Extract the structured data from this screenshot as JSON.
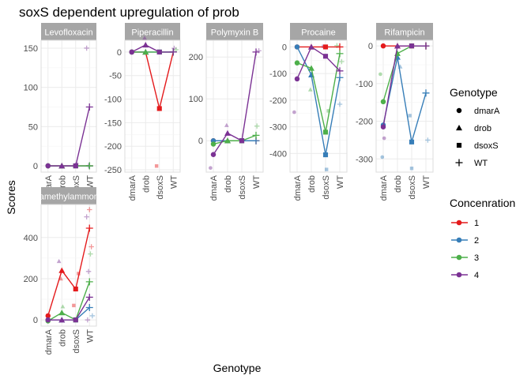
{
  "chart_data": {
    "type": "line",
    "title": "soxS dependent upregulation of prob",
    "xlabel": "Genotype",
    "ylabel": "Scores",
    "categories": [
      "dmarA",
      "drob",
      "dsoxS",
      "WT"
    ],
    "grid": true,
    "legends": {
      "shape": {
        "title": "Genotype",
        "items": [
          {
            "label": "dmarA",
            "shape": "circle"
          },
          {
            "label": "drob",
            "shape": "triangle"
          },
          {
            "label": "dsoxS",
            "shape": "square"
          },
          {
            "label": "WT",
            "shape": "plus"
          }
        ]
      },
      "color": {
        "title": "Concenration",
        "items": [
          {
            "label": "1",
            "color": "#e41a1c"
          },
          {
            "label": "2",
            "color": "#377eb8"
          },
          {
            "label": "3",
            "color": "#4daf4a"
          },
          {
            "label": "4",
            "color": "#7b3294"
          }
        ]
      },
      "placement": "right"
    },
    "panels": [
      {
        "strip": "Levofloxacin",
        "ylim": [
          -8,
          160
        ],
        "yticks": [
          0,
          50,
          100,
          150
        ],
        "series": [
          {
            "name": "1",
            "values": [
              0,
              0,
              0,
              0
            ]
          },
          {
            "name": "2",
            "values": [
              0,
              0,
              0,
              0
            ]
          },
          {
            "name": "3",
            "values": [
              0,
              0,
              0,
              0
            ]
          },
          {
            "name": "4",
            "values": [
              0,
              0,
              0,
              75
            ]
          }
        ],
        "raw": [
          {
            "c": 3,
            "g": 3,
            "v": 150
          },
          {
            "c": 3,
            "g": 3,
            "v": 0
          },
          {
            "c": 3,
            "g": 2,
            "v": 2
          }
        ]
      },
      {
        "strip": "Piperacillin",
        "ylim": [
          -255,
          25
        ],
        "yticks": [
          0,
          -50,
          -100,
          -150,
          -200,
          -250
        ],
        "series": [
          {
            "name": "1",
            "values": [
              0,
              0,
              -120,
              0
            ]
          },
          {
            "name": "2",
            "values": [
              0,
              0,
              0,
              0
            ]
          },
          {
            "name": "3",
            "values": [
              0,
              0,
              0,
              0
            ]
          },
          {
            "name": "4",
            "values": [
              0,
              15,
              0,
              0
            ]
          }
        ],
        "raw": [
          {
            "c": 0,
            "g": 2,
            "v": -242
          },
          {
            "c": 3,
            "g": 1,
            "v": 30
          },
          {
            "c": 3,
            "g": 3,
            "v": 8
          },
          {
            "c": 2,
            "g": 3,
            "v": 5
          }
        ]
      },
      {
        "strip": "Polymyxin B",
        "ylim": [
          -75,
          240
        ],
        "yticks": [
          0,
          100,
          200
        ],
        "series": [
          {
            "name": "1",
            "values": [
              0,
              0,
              0,
              0
            ]
          },
          {
            "name": "2",
            "values": [
              0,
              0,
              0,
              0
            ]
          },
          {
            "name": "3",
            "values": [
              -8,
              0,
              0,
              13
            ]
          },
          {
            "name": "4",
            "values": [
              -33,
              18,
              0,
              212
            ]
          }
        ],
        "raw": [
          {
            "c": 3,
            "g": 0,
            "v": -65
          },
          {
            "c": 3,
            "g": 1,
            "v": 37
          },
          {
            "c": 2,
            "g": 3,
            "v": 35
          },
          {
            "c": 3,
            "g": 3,
            "v": 215
          }
        ]
      },
      {
        "strip": "Procaine",
        "ylim": [
          -470,
          25
        ],
        "yticks": [
          0,
          -100,
          -200,
          -300,
          -400
        ],
        "series": [
          {
            "name": "1",
            "values": [
              0,
              0,
              0,
              0
            ]
          },
          {
            "name": "2",
            "values": [
              0,
              -105,
              -405,
              -115
            ]
          },
          {
            "name": "3",
            "values": [
              -60,
              -80,
              -320,
              -25
            ]
          },
          {
            "name": "4",
            "values": [
              -120,
              0,
              -35,
              -90
            ]
          }
        ],
        "raw": [
          {
            "c": 3,
            "g": 0,
            "v": -245
          },
          {
            "c": 2,
            "g": 1,
            "v": -160
          },
          {
            "c": 1,
            "g": 2,
            "v": -460
          },
          {
            "c": 2,
            "g": 2,
            "v": -240
          },
          {
            "c": 3,
            "g": 2,
            "v": 2
          },
          {
            "c": 1,
            "g": 3,
            "v": -215
          },
          {
            "c": 2,
            "g": 3,
            "v": -55
          },
          {
            "c": 2,
            "g": 3,
            "v": 5
          }
        ]
      },
      {
        "strip": "Rifampicin",
        "ylim": [
          -335,
          15
        ],
        "yticks": [
          0,
          -100,
          -200,
          -300
        ],
        "series": [
          {
            "name": "1",
            "values": [
              0,
              0,
              0,
              0
            ]
          },
          {
            "name": "2",
            "values": [
              -210,
              -30,
              -255,
              -125
            ]
          },
          {
            "name": "3",
            "values": [
              -148,
              -20,
              0,
              0
            ]
          },
          {
            "name": "4",
            "values": [
              -215,
              0,
              0,
              0
            ]
          }
        ],
        "raw": [
          {
            "c": 2,
            "g": 0,
            "v": -75
          },
          {
            "c": 1,
            "g": 0,
            "v": -295
          },
          {
            "c": 3,
            "g": 0,
            "v": -245
          },
          {
            "c": 1,
            "g": 1,
            "v": -55
          },
          {
            "c": 1,
            "g": 2,
            "v": -185
          },
          {
            "c": 1,
            "g": 2,
            "v": -325
          },
          {
            "c": 1,
            "g": 3,
            "v": -250
          }
        ]
      },
      {
        "strip": "Tetramethylammonium",
        "strip_visible": "amonomethoz",
        "ylim": [
          -30,
          560
        ],
        "yticks": [
          0,
          200,
          400
        ],
        "series": [
          {
            "name": "1",
            "values": [
              20,
              240,
              150,
              445
            ]
          },
          {
            "name": "2",
            "values": [
              0,
              0,
              0,
              60
            ]
          },
          {
            "name": "3",
            "values": [
              -5,
              35,
              0,
              185
            ]
          },
          {
            "name": "4",
            "values": [
              0,
              0,
              0,
              110
            ]
          }
        ],
        "raw": [
          {
            "c": 3,
            "g": 1,
            "v": 285
          },
          {
            "c": 0,
            "g": 1,
            "v": 200
          },
          {
            "c": 2,
            "g": 1,
            "v": 65
          },
          {
            "c": 0,
            "g": 2,
            "v": 225
          },
          {
            "c": 0,
            "g": 2,
            "v": 70
          },
          {
            "c": 0,
            "g": 3,
            "v": 535
          },
          {
            "c": 0,
            "g": 3,
            "v": 355
          },
          {
            "c": 3,
            "g": 3,
            "v": 500
          },
          {
            "c": 3,
            "g": 3,
            "v": 235
          },
          {
            "c": 2,
            "g": 3,
            "v": 320
          },
          {
            "c": 1,
            "g": 3,
            "v": 20
          },
          {
            "c": 3,
            "g": 3,
            "v": 0
          }
        ]
      }
    ]
  }
}
